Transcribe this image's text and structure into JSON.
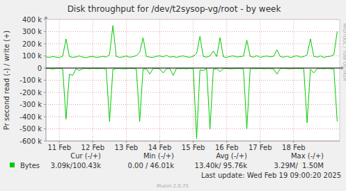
{
  "chart_data": {
    "type": "line",
    "title": "Disk throughput for /dev/t2sysop-vg/root - by week",
    "y_label": "Pr second read (-) / write (+)",
    "watermark": "RRDTOOL / TOBI OETIKER",
    "last_update": "Last update: Wed Feb 19 09:00:20 2025",
    "footer": "Munin 2.0.75",
    "grid": true,
    "xlim": [
      10.6,
      19.375
    ],
    "ylim": [
      -600000,
      400000
    ],
    "xticks": [
      {
        "value": 11,
        "label": "11 Feb"
      },
      {
        "value": 12,
        "label": "12 Feb"
      },
      {
        "value": 13,
        "label": "13 Feb"
      },
      {
        "value": 14,
        "label": "14 Feb"
      },
      {
        "value": 15,
        "label": "15 Feb"
      },
      {
        "value": 16,
        "label": "16 Feb"
      },
      {
        "value": 17,
        "label": "17 Feb"
      },
      {
        "value": 18,
        "label": "18 Feb"
      }
    ],
    "yticks": [
      {
        "value": 400000,
        "label": "400 k"
      },
      {
        "value": 300000,
        "label": "300 k"
      },
      {
        "value": 200000,
        "label": "200 k"
      },
      {
        "value": 100000,
        "label": "100 k"
      },
      0,
      {
        "value": -100000,
        "label": "-100 k"
      },
      {
        "value": -200000,
        "label": "-200 k"
      },
      {
        "value": -300000,
        "label": "-300 k"
      },
      {
        "value": -400000,
        "label": "-400 k"
      },
      {
        "value": -500000,
        "label": "-500 k"
      },
      {
        "value": -600000,
        "label": "-600 k"
      }
    ],
    "stat_headers": [
      "Cur (-/+)",
      "Min (-/+)",
      "Avg (-/+)",
      "Max (-/+)"
    ],
    "x": [
      10.6,
      10.7,
      10.8,
      10.9,
      11.0,
      11.1,
      11.2,
      11.3,
      11.4,
      11.5,
      11.6,
      11.7,
      11.8,
      11.9,
      12.0,
      12.1,
      12.2,
      12.3,
      12.4,
      12.5,
      12.6,
      12.7,
      12.8,
      12.9,
      13.0,
      13.1,
      13.2,
      13.3,
      13.4,
      13.5,
      13.6,
      13.7,
      13.8,
      13.9,
      14.0,
      14.1,
      14.2,
      14.3,
      14.4,
      14.5,
      14.6,
      14.7,
      14.8,
      14.9,
      15.0,
      15.1,
      15.2,
      15.3,
      15.4,
      15.5,
      15.6,
      15.7,
      15.8,
      15.9,
      16.0,
      16.1,
      16.2,
      16.3,
      16.4,
      16.5,
      16.6,
      16.7,
      16.8,
      16.9,
      17.0,
      17.1,
      17.2,
      17.3,
      17.4,
      17.5,
      17.6,
      17.7,
      17.8,
      17.9,
      18.0,
      18.1,
      18.2,
      18.3,
      18.4,
      18.5,
      18.6,
      18.7,
      18.8,
      18.9,
      19.0,
      19.1,
      19.2,
      19.3
    ],
    "series": [
      {
        "name": "Bytes",
        "color": "#00cc00",
        "stats": [
          "3.09k/100.43k",
          "0.00 / 46.01k",
          "13.40k/ 95.76k",
          "3.29M/  1.50M"
        ],
        "values": [
          92000,
          88000,
          95000,
          90000,
          86000,
          98000,
          240000,
          95000,
          88000,
          92000,
          100000,
          90000,
          85000,
          93000,
          96000,
          88000,
          91000,
          97000,
          90000,
          110000,
          350000,
          95000,
          88000,
          92000,
          99000,
          89000,
          94000,
          102000,
          130000,
          250000,
          96000,
          90000,
          88000,
          97000,
          100000,
          92000,
          105000,
          90000,
          95000,
          88000,
          96000,
          100000,
          92000,
          89000,
          97000,
          120000,
          260000,
          95000,
          90000,
          100000,
          140000,
          95000,
          250000,
          92000,
          88000,
          96000,
          100000,
          91000,
          94000,
          98000,
          230000,
          96000,
          90000,
          102000,
          88000,
          95000,
          99000,
          92000,
          97000,
          150000,
          94000,
          90000,
          98000,
          86000,
          95000,
          101000,
          90000,
          94000,
          110000,
          240000,
          96000,
          90000,
          100000,
          88000,
          94000,
          97000,
          110000,
          300000
        ]
      },
      {
        "color": "#00cc00",
        "values": [
          -5000,
          -3000,
          -8000,
          -4000,
          -2000,
          -6000,
          -420000,
          -50000,
          -60000,
          -5000,
          -20000,
          -4000,
          -3000,
          -6000,
          -2000,
          -5000,
          -4000,
          -3000,
          -8000,
          -440000,
          -10000,
          -4000,
          -3000,
          -6000,
          -5000,
          -2000,
          -4000,
          -7000,
          -440000,
          -10000,
          -5000,
          -50000,
          -4000,
          -3000,
          -6000,
          -40000,
          -5000,
          -4000,
          -60000,
          -3000,
          -5000,
          -4000,
          -6000,
          -3000,
          -5000,
          -580000,
          -15000,
          -20000,
          -4000,
          -500000,
          -10000,
          -5000,
          -30000,
          -4000,
          -3000,
          -6000,
          -5000,
          -4000,
          -3000,
          -8000,
          -500000,
          -6000,
          -4000,
          -5000,
          -3000,
          -6000,
          -4000,
          -5000,
          -7000,
          -50000,
          -4000,
          -3000,
          -5000,
          -6000,
          -4000,
          -3000,
          -5000,
          -4000,
          -450000,
          -10000,
          -40000,
          -5000,
          -4000,
          -6000,
          -3000,
          -5000,
          -8000,
          -440000
        ]
      }
    ]
  }
}
